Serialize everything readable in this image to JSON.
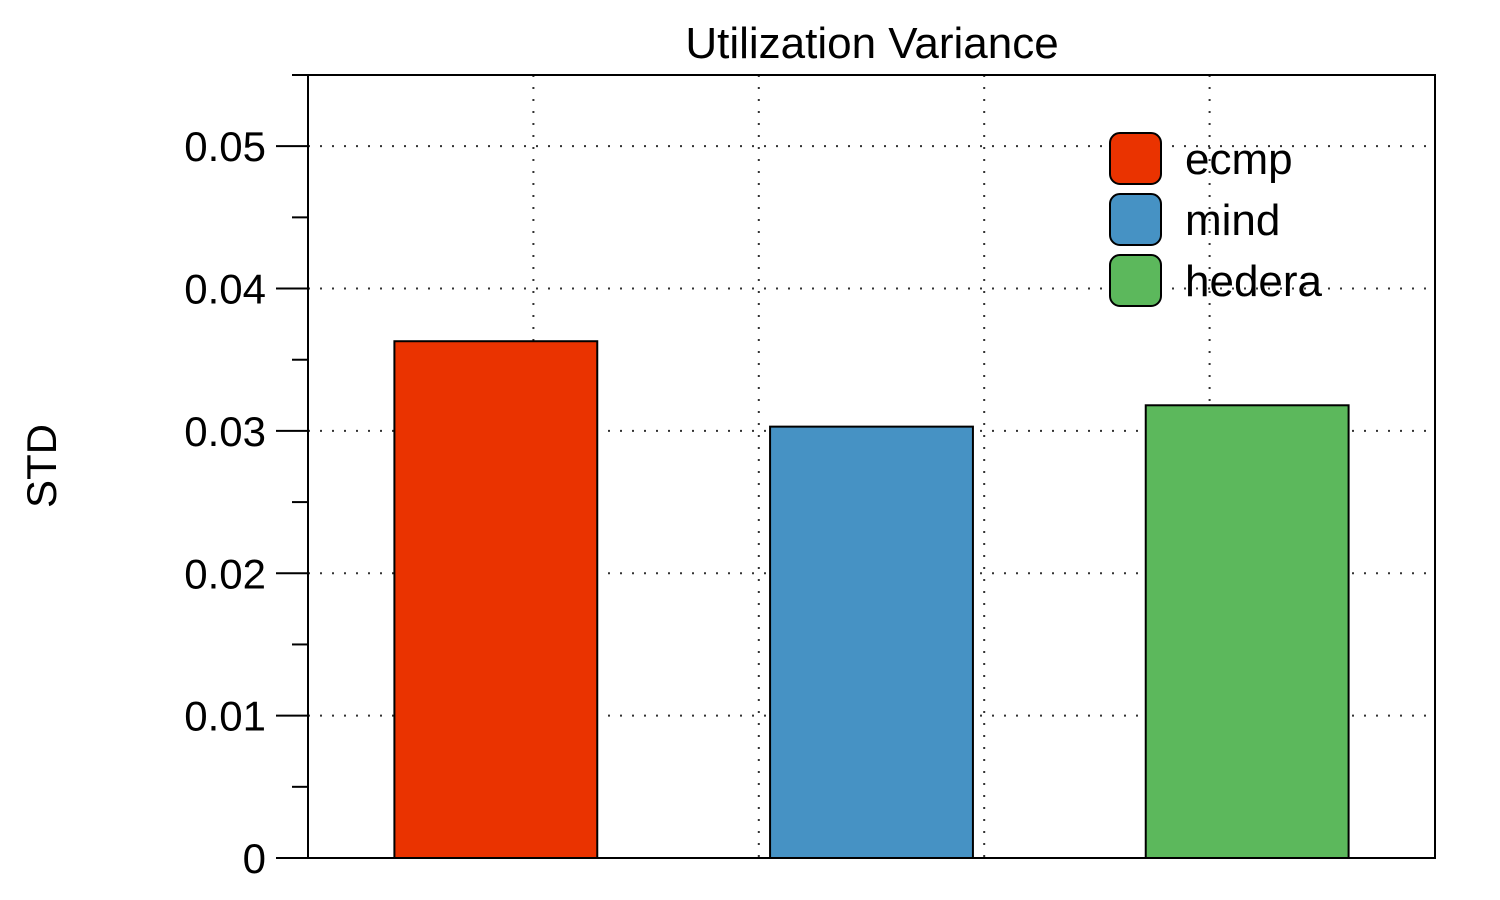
{
  "chart_data": {
    "type": "bar",
    "title": "Utilization Variance",
    "xlabel": "",
    "ylabel": "STD",
    "ylim": [
      0,
      0.055
    ],
    "yticks": [
      "0",
      "0.01",
      "0.02",
      "0.03",
      "0.04",
      "0.05"
    ],
    "grid": true,
    "legend_position": "top-right",
    "series": [
      {
        "name": "ecmp",
        "value": 0.0363,
        "color": "#ea3300"
      },
      {
        "name": "mind",
        "value": 0.0303,
        "color": "#4692c4"
      },
      {
        "name": "hedera",
        "value": 0.0318,
        "color": "#5cb85c"
      }
    ]
  }
}
